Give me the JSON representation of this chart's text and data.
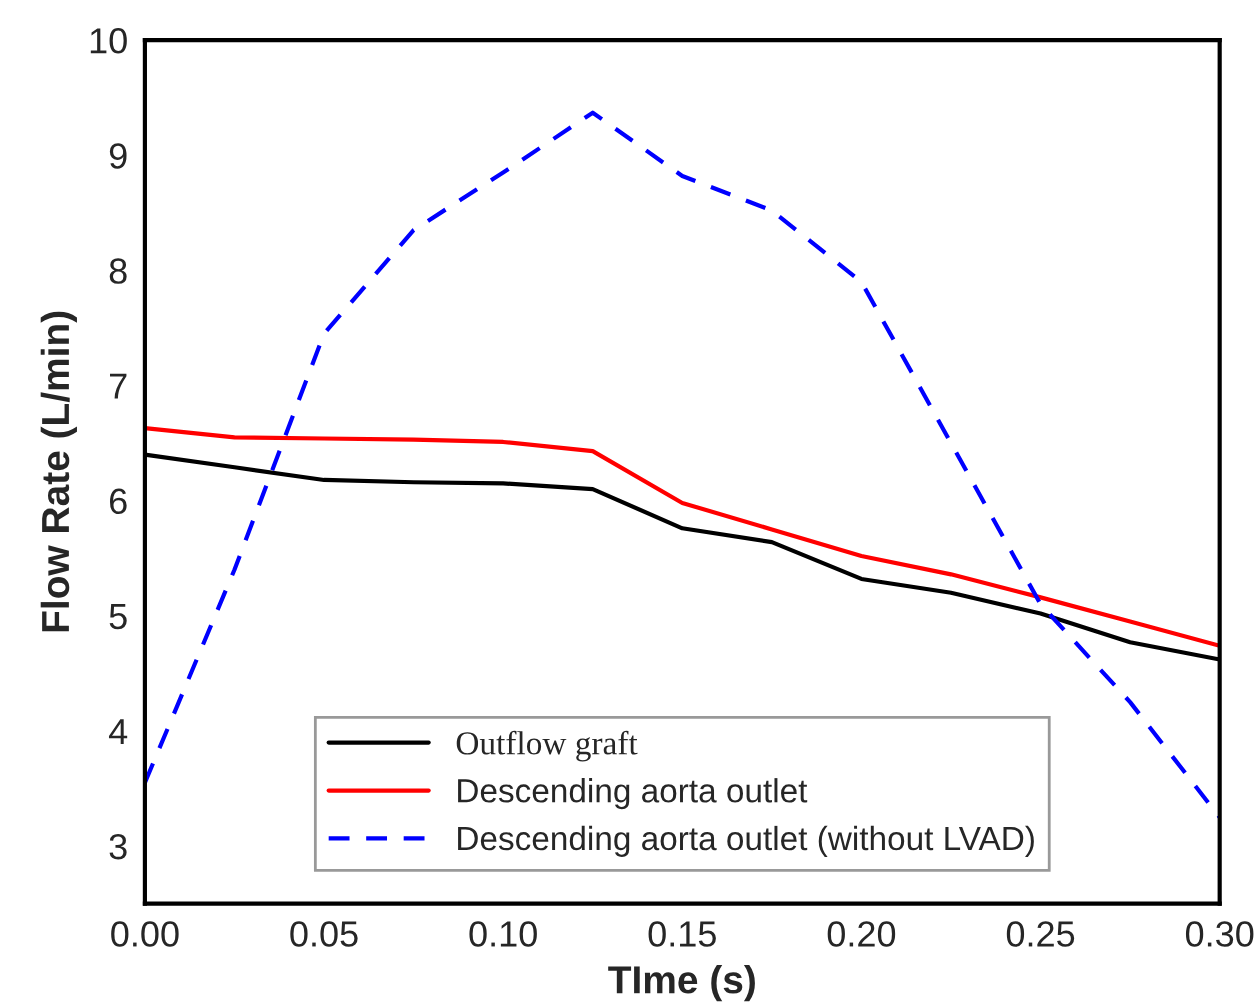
{
  "chart_data": {
    "type": "line",
    "xlabel": "TIme (s)",
    "ylabel": "Flow Rate (L/min)",
    "x": [
      0,
      0.025,
      0.05,
      0.075,
      0.1,
      0.125,
      0.15,
      0.175,
      0.2,
      0.225,
      0.25,
      0.275,
      0.3
    ],
    "series": [
      {
        "name": "Outflow graft",
        "color": "#000000",
        "line_style": "solid",
        "values": [
          6.4,
          6.29,
          6.18,
          6.16,
          6.15,
          6.1,
          5.76,
          5.64,
          5.32,
          5.2,
          5.02,
          4.77,
          4.62
        ]
      },
      {
        "name": "Descending aorta outlet",
        "color": "#ff0000",
        "line_style": "solid",
        "values": [
          6.63,
          6.55,
          6.54,
          6.53,
          6.51,
          6.43,
          5.98,
          5.75,
          5.52,
          5.36,
          5.16,
          4.95,
          4.74
        ]
      },
      {
        "name": "Descending aorta outlet (without LVAD)",
        "color": "#0000ff",
        "line_style": "dashed",
        "values": [
          3.55,
          5.4,
          7.45,
          8.35,
          8.85,
          9.37,
          8.82,
          8.52,
          7.9,
          6.5,
          5.1,
          4.25,
          3.25
        ]
      }
    ],
    "xlim": [
      0,
      0.3
    ],
    "xticks": [
      {
        "value": 0,
        "label": "0.00"
      },
      {
        "value": 0.05,
        "label": "0.05"
      },
      {
        "value": 0.1,
        "label": "0.10"
      },
      {
        "value": 0.15,
        "label": "0.15"
      },
      {
        "value": 0.2,
        "label": "0.20"
      },
      {
        "value": 0.25,
        "label": "0.25"
      },
      {
        "value": 0.3,
        "label": "0.30"
      }
    ],
    "ylim": [
      2.5,
      10
    ],
    "yticks": [
      3,
      4,
      5,
      6,
      7,
      8,
      9,
      10
    ],
    "grid": false,
    "legend": "bottom",
    "marker": "none"
  }
}
